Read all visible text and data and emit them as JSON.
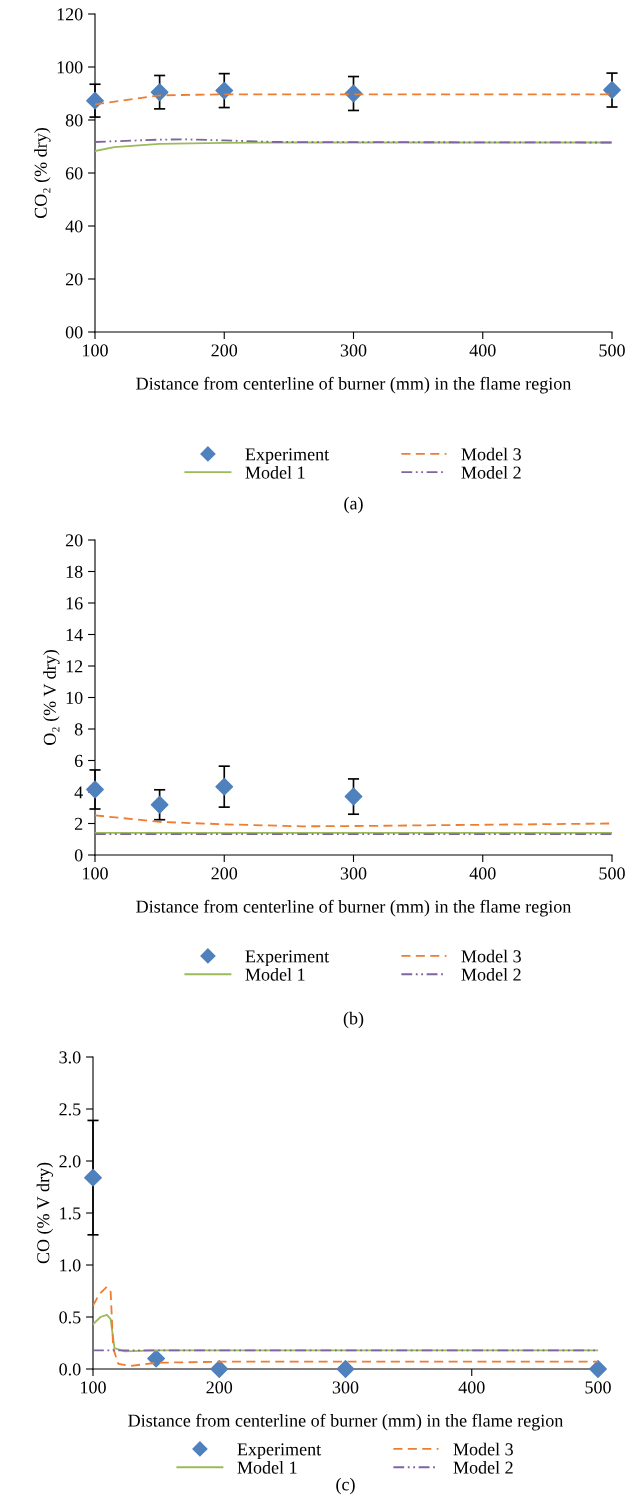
{
  "chart_data": [
    {
      "type": "line",
      "xlabel": "Distance from centerline of burner (mm) in the flame region",
      "ylabel": "CO₂ (% dry)",
      "annotations": [
        "(a)"
      ],
      "xlim": [
        100,
        500
      ],
      "xticks": [
        100,
        200,
        300,
        400,
        500
      ],
      "ylim": [
        0,
        120
      ],
      "yticks": [
        {
          "value": 0,
          "label": "00"
        },
        20,
        40,
        60,
        80,
        100,
        120
      ],
      "grid": false,
      "legend": "bottom",
      "series": [
        {
          "name": "Experiment",
          "type": "scatter",
          "marker": "diamond",
          "color": "#4f81bd",
          "x": [
            100,
            150,
            200,
            300,
            500
          ],
          "values": [
            87.3,
            90.5,
            91.1,
            90.0,
            91.3
          ],
          "errors": [
            6.2,
            6.3,
            6.4,
            6.4,
            6.4
          ]
        },
        {
          "name": "Model 1",
          "type": "line",
          "line_style": "solid",
          "color": "#9bbb59",
          "x": [
            100,
            115,
            150,
            200,
            250,
            500
          ],
          "values": [
            68.3,
            69.8,
            71.0,
            71.4,
            71.5,
            71.5
          ]
        },
        {
          "name": "Model 3",
          "type": "line",
          "line_style": "dashed",
          "color": "#ed7d31",
          "x": [
            100,
            150,
            200,
            500
          ],
          "values": [
            85.9,
            89.3,
            89.7,
            89.7
          ]
        },
        {
          "name": "Model 2",
          "type": "line",
          "line_style": "dotted",
          "color": "#8064a2",
          "x": [
            100,
            150,
            170,
            200,
            240,
            500
          ],
          "values": [
            71.7,
            72.6,
            72.7,
            72.3,
            71.7,
            71.5
          ]
        }
      ]
    },
    {
      "type": "line",
      "xlabel": "Distance from centerline of burner (mm) in the flame region",
      "ylabel": "O₂ (% V dry)",
      "annotations": [
        "(b)"
      ],
      "xlim": [
        100,
        500
      ],
      "xticks": [
        100,
        200,
        300,
        400,
        500
      ],
      "ylim": [
        0,
        20
      ],
      "yticks": [
        0,
        2,
        4,
        6,
        8,
        10,
        12,
        14,
        16,
        18,
        20
      ],
      "grid": false,
      "legend": "bottom",
      "series": [
        {
          "name": "Experiment",
          "type": "scatter",
          "marker": "diamond",
          "color": "#4f81bd",
          "x": [
            100,
            150,
            200,
            300
          ],
          "values": [
            4.16,
            3.19,
            4.34,
            3.71
          ],
          "errors": [
            1.24,
            0.95,
            1.3,
            1.12
          ]
        },
        {
          "name": "Model 1",
          "type": "line",
          "line_style": "solid",
          "color": "#9bbb59",
          "x": [
            100,
            500
          ],
          "values": [
            1.4,
            1.4
          ]
        },
        {
          "name": "Model 3",
          "type": "line",
          "line_style": "dashed",
          "color": "#ed7d31",
          "x": [
            100,
            150,
            200,
            260,
            300,
            400,
            500
          ],
          "values": [
            2.52,
            2.1,
            1.95,
            1.82,
            1.84,
            1.92,
            2.0
          ]
        },
        {
          "name": "Model 2",
          "type": "line",
          "line_style": "dotted",
          "color": "#8064a2",
          "x": [
            100,
            500
          ],
          "values": [
            1.32,
            1.32
          ]
        }
      ]
    },
    {
      "type": "line",
      "xlabel": "Distance from centerline of burner (mm) in the flame region",
      "ylabel": "CO (% V dry)",
      "annotations": [
        "(c)"
      ],
      "xlim": [
        100,
        500
      ],
      "xticks": [
        100,
        200,
        300,
        400,
        500
      ],
      "ylim": [
        0,
        3
      ],
      "yticks": [
        {
          "value": 0,
          "label": "0.0"
        },
        0.5,
        {
          "value": 1,
          "label": "1.0"
        },
        1.5,
        {
          "value": 2,
          "label": "2.0"
        },
        2.5,
        {
          "value": 3,
          "label": "3.0"
        }
      ],
      "grid": false,
      "legend": "bottom",
      "series": [
        {
          "name": "Experiment",
          "type": "scatter",
          "marker": "diamond",
          "color": "#4f81bd",
          "x": [
            100,
            150,
            200,
            300,
            500
          ],
          "values": [
            1.84,
            0.1,
            0.0,
            0.0,
            0.0
          ],
          "errors": [
            0.55,
            null,
            null,
            null,
            null
          ]
        },
        {
          "name": "Model 1",
          "type": "line",
          "line_style": "solid",
          "color": "#9bbb59",
          "x": [
            100,
            106,
            111,
            114,
            117,
            125,
            150,
            500
          ],
          "values": [
            0.43,
            0.5,
            0.52,
            0.48,
            0.2,
            0.17,
            0.18,
            0.18
          ]
        },
        {
          "name": "Model 3",
          "type": "line",
          "line_style": "dashed",
          "color": "#ed7d31",
          "x": [
            100,
            105,
            111,
            114,
            116,
            120,
            130,
            150,
            200,
            500
          ],
          "values": [
            0.61,
            0.72,
            0.79,
            0.74,
            0.2,
            0.05,
            0.03,
            0.06,
            0.07,
            0.07
          ]
        },
        {
          "name": "Model 2",
          "type": "line",
          "line_style": "dotted",
          "color": "#8064a2",
          "x": [
            100,
            500
          ],
          "values": [
            0.18,
            0.18
          ]
        }
      ]
    }
  ]
}
